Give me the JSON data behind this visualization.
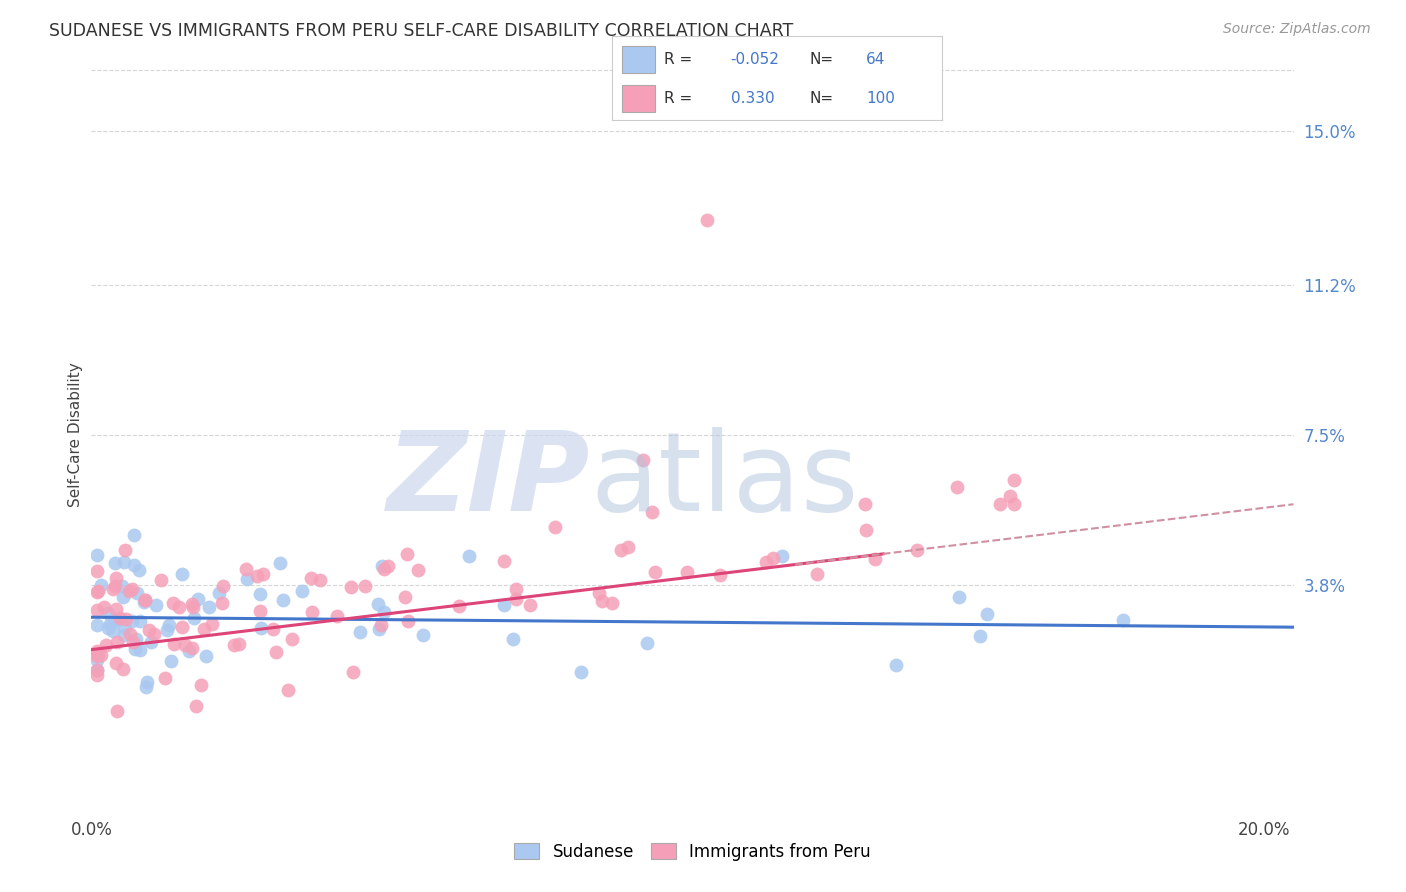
{
  "title": "SUDANESE VS IMMIGRANTS FROM PERU SELF-CARE DISABILITY CORRELATION CHART",
  "source": "Source: ZipAtlas.com",
  "ylabel": "Self-Care Disability",
  "xlim": [
    0.0,
    0.205
  ],
  "ylim": [
    -0.018,
    0.168
  ],
  "ytick_vals": [
    0.038,
    0.075,
    0.112,
    0.15
  ],
  "ytick_labels": [
    "3.8%",
    "7.5%",
    "11.2%",
    "15.0%"
  ],
  "color_blue": "#aac8f0",
  "color_pink": "#f5a0b8",
  "line_blue": "#4477cc",
  "line_pink": "#dd4477",
  "line_dash_color": "#d090a0",
  "grid_color": "#cccccc",
  "R_blue": -0.052,
  "N_blue": 64,
  "R_pink": 0.33,
  "N_pink": 100,
  "legend_color": "#4477cc",
  "right_label_color": "#5588cc",
  "title_color": "#333333",
  "source_color": "#999999"
}
